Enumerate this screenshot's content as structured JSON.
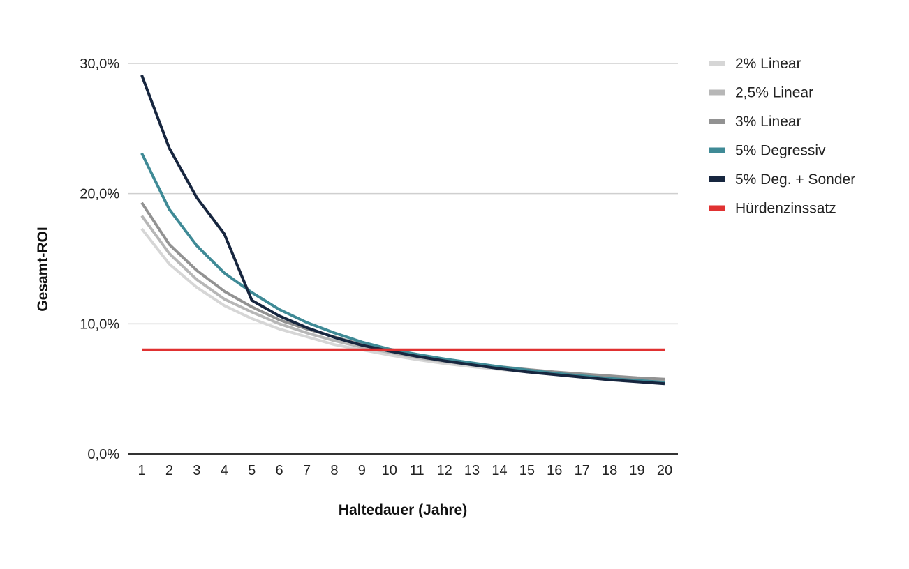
{
  "chart_data": {
    "type": "line",
    "xlabel": "Haltedauer (Jahre)",
    "ylabel": "Gesamt-ROI",
    "x": [
      1,
      2,
      3,
      4,
      5,
      6,
      7,
      8,
      9,
      10,
      11,
      12,
      13,
      14,
      15,
      16,
      17,
      18,
      19,
      20
    ],
    "ylim": [
      0,
      30
    ],
    "yticks": [
      0,
      10,
      20,
      30
    ],
    "ytick_labels": [
      "0,0%",
      "10,0%",
      "20,0%",
      "30,0%"
    ],
    "grid": true,
    "legend_position": "right",
    "series": [
      {
        "name": "2% Linear",
        "color": "#d6d6d6",
        "values": [
          17.3,
          14.6,
          12.8,
          11.4,
          10.4,
          9.6,
          9.0,
          8.4,
          8.0,
          7.6,
          7.25,
          6.95,
          6.7,
          6.5,
          6.3,
          6.15,
          6.0,
          5.85,
          5.75,
          5.6
        ]
      },
      {
        "name": "2,5% Linear",
        "color": "#b7b7b7",
        "values": [
          18.3,
          15.4,
          13.4,
          11.9,
          10.9,
          10.0,
          9.3,
          8.7,
          8.2,
          7.8,
          7.4,
          7.1,
          6.85,
          6.6,
          6.4,
          6.25,
          6.1,
          5.95,
          5.8,
          5.7
        ]
      },
      {
        "name": "3% Linear",
        "color": "#929292",
        "values": [
          19.3,
          16.1,
          14.1,
          12.5,
          11.3,
          10.3,
          9.6,
          9.0,
          8.4,
          8.0,
          7.6,
          7.25,
          6.95,
          6.7,
          6.5,
          6.3,
          6.15,
          6.0,
          5.85,
          5.75
        ]
      },
      {
        "name": "5% Degressiv",
        "color": "#3f8a96",
        "values": [
          23.1,
          18.8,
          16.0,
          13.9,
          12.4,
          11.1,
          10.1,
          9.3,
          8.6,
          8.05,
          7.65,
          7.3,
          7.0,
          6.7,
          6.45,
          6.2,
          6.0,
          5.8,
          5.65,
          5.5
        ]
      },
      {
        "name": "5% Deg. + Sonder",
        "color": "#17263f",
        "values": [
          29.1,
          23.5,
          19.7,
          16.9,
          11.8,
          10.6,
          9.7,
          8.95,
          8.35,
          7.9,
          7.5,
          7.15,
          6.85,
          6.55,
          6.3,
          6.1,
          5.9,
          5.7,
          5.55,
          5.4
        ]
      },
      {
        "name": "Hürdenzinssatz",
        "color": "#e03131",
        "values": [
          8.0,
          8.0,
          8.0,
          8.0,
          8.0,
          8.0,
          8.0,
          8.0,
          8.0,
          8.0,
          8.0,
          8.0,
          8.0,
          8.0,
          8.0,
          8.0,
          8.0,
          8.0,
          8.0,
          8.0
        ]
      }
    ]
  }
}
